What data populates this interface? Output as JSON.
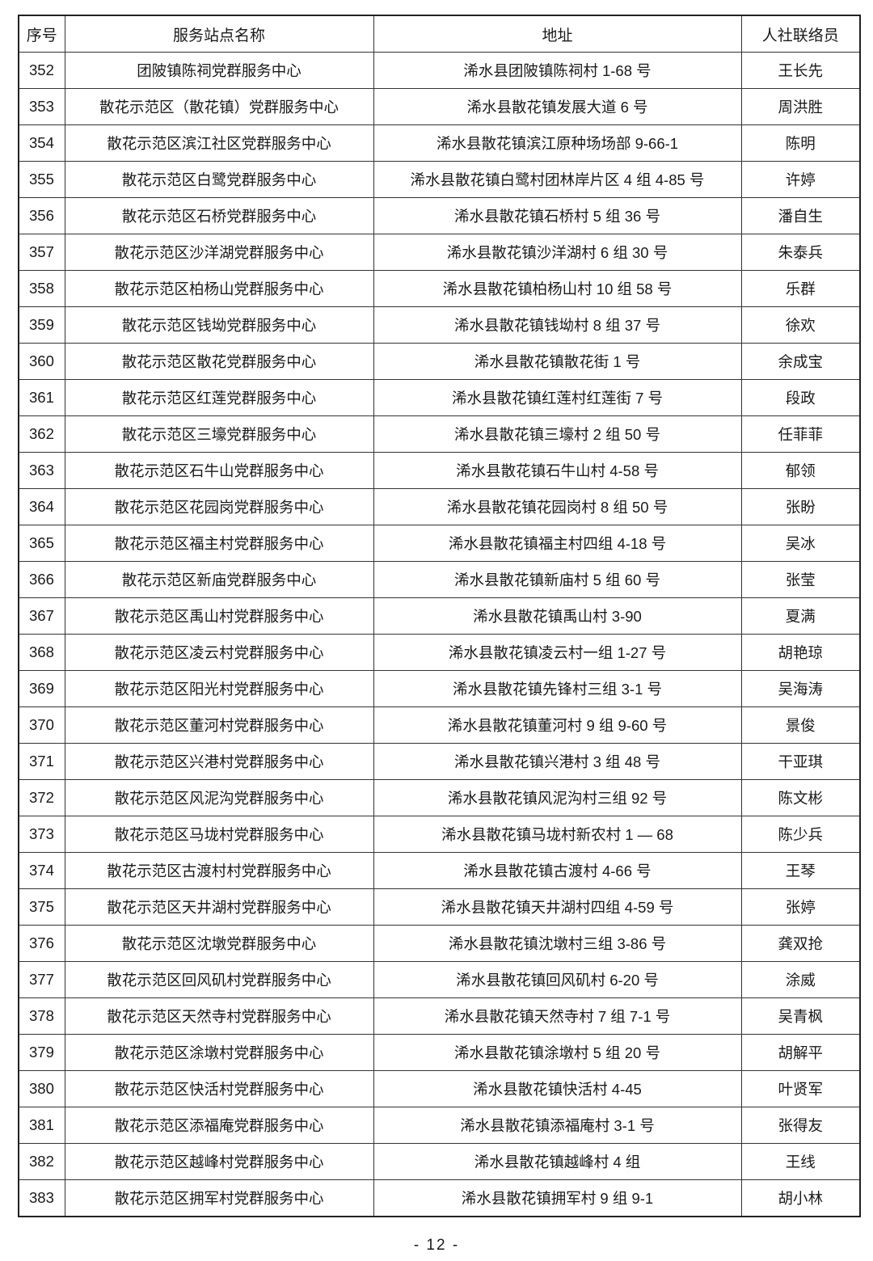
{
  "table": {
    "headers": [
      "序号",
      "服务站点名称",
      "地址",
      "人社联络员"
    ],
    "rows": [
      [
        "352",
        "团陂镇陈祠党群服务中心",
        "浠水县团陂镇陈祠村 1-68 号",
        "王长先"
      ],
      [
        "353",
        "散花示范区（散花镇）党群服务中心",
        "浠水县散花镇发展大道 6 号",
        "周洪胜"
      ],
      [
        "354",
        "散花示范区滨江社区党群服务中心",
        "浠水县散花镇滨江原种场场部 9-66-1",
        "陈明"
      ],
      [
        "355",
        "散花示范区白鹭党群服务中心",
        "浠水县散花镇白鹭村团林岸片区 4 组 4-85 号",
        "许婷"
      ],
      [
        "356",
        "散花示范区石桥党群服务中心",
        "浠水县散花镇石桥村 5 组 36 号",
        "潘自生"
      ],
      [
        "357",
        "散花示范区沙洋湖党群服务中心",
        "浠水县散花镇沙洋湖村 6 组 30 号",
        "朱泰兵"
      ],
      [
        "358",
        "散花示范区柏杨山党群服务中心",
        "浠水县散花镇柏杨山村 10 组 58 号",
        "乐群"
      ],
      [
        "359",
        "散花示范区钱坳党群服务中心",
        "浠水县散花镇钱坳村 8 组 37 号",
        "徐欢"
      ],
      [
        "360",
        "散花示范区散花党群服务中心",
        "浠水县散花镇散花街 1 号",
        "余成宝"
      ],
      [
        "361",
        "散花示范区红莲党群服务中心",
        "浠水县散花镇红莲村红莲街 7 号",
        "段政"
      ],
      [
        "362",
        "散花示范区三壕党群服务中心",
        "浠水县散花镇三壕村 2 组 50 号",
        "任菲菲"
      ],
      [
        "363",
        "散花示范区石牛山党群服务中心",
        "浠水县散花镇石牛山村 4-58 号",
        "郁领"
      ],
      [
        "364",
        "散花示范区花园岗党群服务中心",
        "浠水县散花镇花园岗村 8 组 50 号",
        "张盼"
      ],
      [
        "365",
        "散花示范区福主村党群服务中心",
        "浠水县散花镇福主村四组 4-18 号",
        "吴冰"
      ],
      [
        "366",
        "散花示范区新庙党群服务中心",
        "浠水县散花镇新庙村 5 组 60 号",
        "张莹"
      ],
      [
        "367",
        "散花示范区禹山村党群服务中心",
        "浠水县散花镇禹山村 3-90",
        "夏满"
      ],
      [
        "368",
        "散花示范区凌云村党群服务中心",
        "浠水县散花镇凌云村一组 1-27 号",
        "胡艳琼"
      ],
      [
        "369",
        "散花示范区阳光村党群服务中心",
        "浠水县散花镇先锋村三组 3-1 号",
        "吴海涛"
      ],
      [
        "370",
        "散花示范区董河村党群服务中心",
        "浠水县散花镇董河村 9 组 9-60 号",
        "景俊"
      ],
      [
        "371",
        "散花示范区兴港村党群服务中心",
        "浠水县散花镇兴港村 3 组 48 号",
        "干亚琪"
      ],
      [
        "372",
        "散花示范区风泥沟党群服务中心",
        "浠水县散花镇风泥沟村三组 92 号",
        "陈文彬"
      ],
      [
        "373",
        "散花示范区马垅村党群服务中心",
        "浠水县散花镇马垅村新农村 1 — 68",
        "陈少兵"
      ],
      [
        "374",
        "散花示范区古渡村村党群服务中心",
        "浠水县散花镇古渡村 4-66 号",
        "王琴"
      ],
      [
        "375",
        "散花示范区天井湖村党群服务中心",
        "浠水县散花镇天井湖村四组 4-59 号",
        "张婷"
      ],
      [
        "376",
        "散花示范区沈墩党群服务中心",
        "浠水县散花镇沈墩村三组 3-86 号",
        "龚双抢"
      ],
      [
        "377",
        "散花示范区回风矶村党群服务中心",
        "浠水县散花镇回风矶村 6-20 号",
        "涂威"
      ],
      [
        "378",
        "散花示范区天然寺村党群服务中心",
        "浠水县散花镇天然寺村 7 组 7-1 号",
        "吴青枫"
      ],
      [
        "379",
        "散花示范区涂墩村党群服务中心",
        "浠水县散花镇涂墩村 5 组 20 号",
        "胡解平"
      ],
      [
        "380",
        "散花示范区快活村党群服务中心",
        "浠水县散花镇快活村 4-45",
        "叶贤军"
      ],
      [
        "381",
        "散花示范区添福庵党群服务中心",
        "浠水县散花镇添福庵村 3-1 号",
        "张得友"
      ],
      [
        "382",
        "散花示范区越峰村党群服务中心",
        "浠水县散花镇越峰村 4 组",
        "王线"
      ],
      [
        "383",
        "散花示范区拥军村党群服务中心",
        "浠水县散花镇拥军村 9 组 9-1",
        "胡小林"
      ]
    ]
  },
  "page_number": "- 12 -"
}
